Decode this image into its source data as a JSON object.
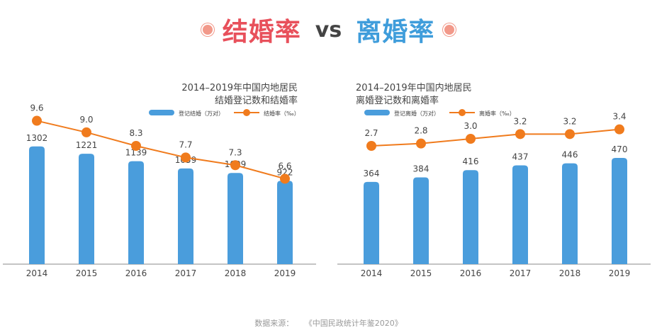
{
  "header": {
    "left_term": "结婚率",
    "vs": "vs",
    "right_term": "离婚率",
    "dot_color": "#f2998a",
    "left_color": "#e8505b",
    "right_color": "#3f9ddb"
  },
  "source": {
    "label": "数据来源：",
    "value": "《中国民政统计年鉴2020》"
  },
  "colors": {
    "bar": "#4a9ddc",
    "line": "#f07b1d",
    "axis": "#888888",
    "text": "#444444"
  },
  "chart_data": [
    {
      "type": "bar",
      "title_line1": "2014–2019年中国内地居民",
      "title_line2": "结婚登记数和结婚率",
      "categories": [
        "2014",
        "2015",
        "2016",
        "2017",
        "2018",
        "2019"
      ],
      "series": [
        {
          "name": "登记结婚（万对）",
          "kind": "bar",
          "values": [
            1302,
            1221,
            1139,
            1059,
            1009,
            922
          ]
        },
        {
          "name": "结婚率（‰）",
          "kind": "line",
          "values": [
            9.6,
            9.0,
            8.3,
            7.7,
            7.3,
            6.6
          ]
        }
      ],
      "bar_labels": [
        "1302",
        "1221",
        "1139",
        "1059",
        "1009",
        "922"
      ],
      "line_labels": [
        "9.6",
        "9.0",
        "8.3",
        "7.7",
        "7.3",
        "6.6"
      ],
      "bar_ylim": [
        0,
        1700
      ],
      "line_ylim": [
        5.0,
        10.5
      ],
      "legend_position": "top-right",
      "grid": false
    },
    {
      "type": "bar",
      "title_line1": "2014–2019年中国内地居民",
      "title_line2": "离婚登记数和离婚率",
      "categories": [
        "2014",
        "2015",
        "2016",
        "2017",
        "2018",
        "2019"
      ],
      "series": [
        {
          "name": "登记离婚（万对）",
          "kind": "bar",
          "values": [
            364,
            384,
            416,
            437,
            446,
            470
          ]
        },
        {
          "name": "离婚率（‰）",
          "kind": "line",
          "values": [
            2.7,
            2.8,
            3.0,
            3.2,
            3.2,
            3.4
          ]
        }
      ],
      "bar_labels": [
        "364",
        "384",
        "416",
        "437",
        "446",
        "470"
      ],
      "line_labels": [
        "2.7",
        "2.8",
        "3.0",
        "3.2",
        "3.2",
        "3.4"
      ],
      "bar_ylim": [
        0,
        680
      ],
      "line_ylim": [
        0.0,
        4.5
      ],
      "legend_position": "top-left",
      "grid": false
    }
  ]
}
